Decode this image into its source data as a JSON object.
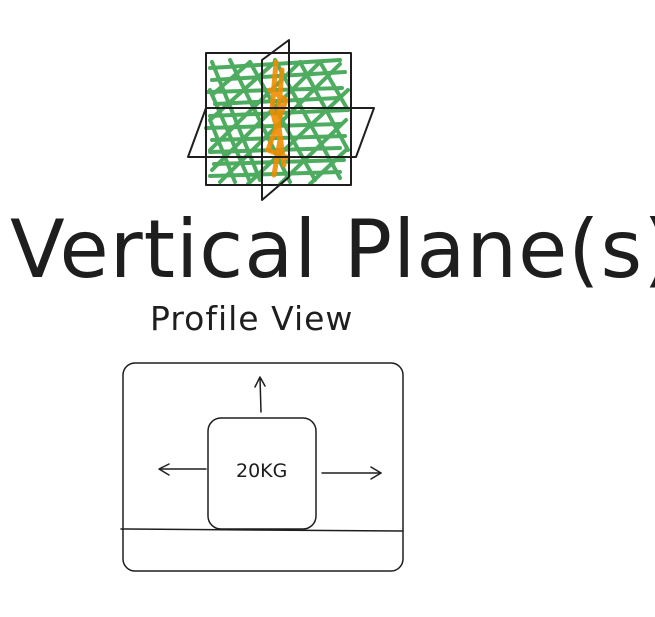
{
  "title": "Vertical Plane(s)",
  "subtitle": "Profile View",
  "box_label": "20KG",
  "colors": {
    "ink": "#1e1e1e",
    "plane_fill": "#2f9e44",
    "vertical_plane_fill": "#f08c00",
    "background": "#ffffff"
  },
  "icons": {
    "planes": "plane-sketch-icon",
    "arrow_up": "arrow-up-icon",
    "arrow_left": "arrow-left-icon",
    "arrow_right": "arrow-right-icon"
  }
}
